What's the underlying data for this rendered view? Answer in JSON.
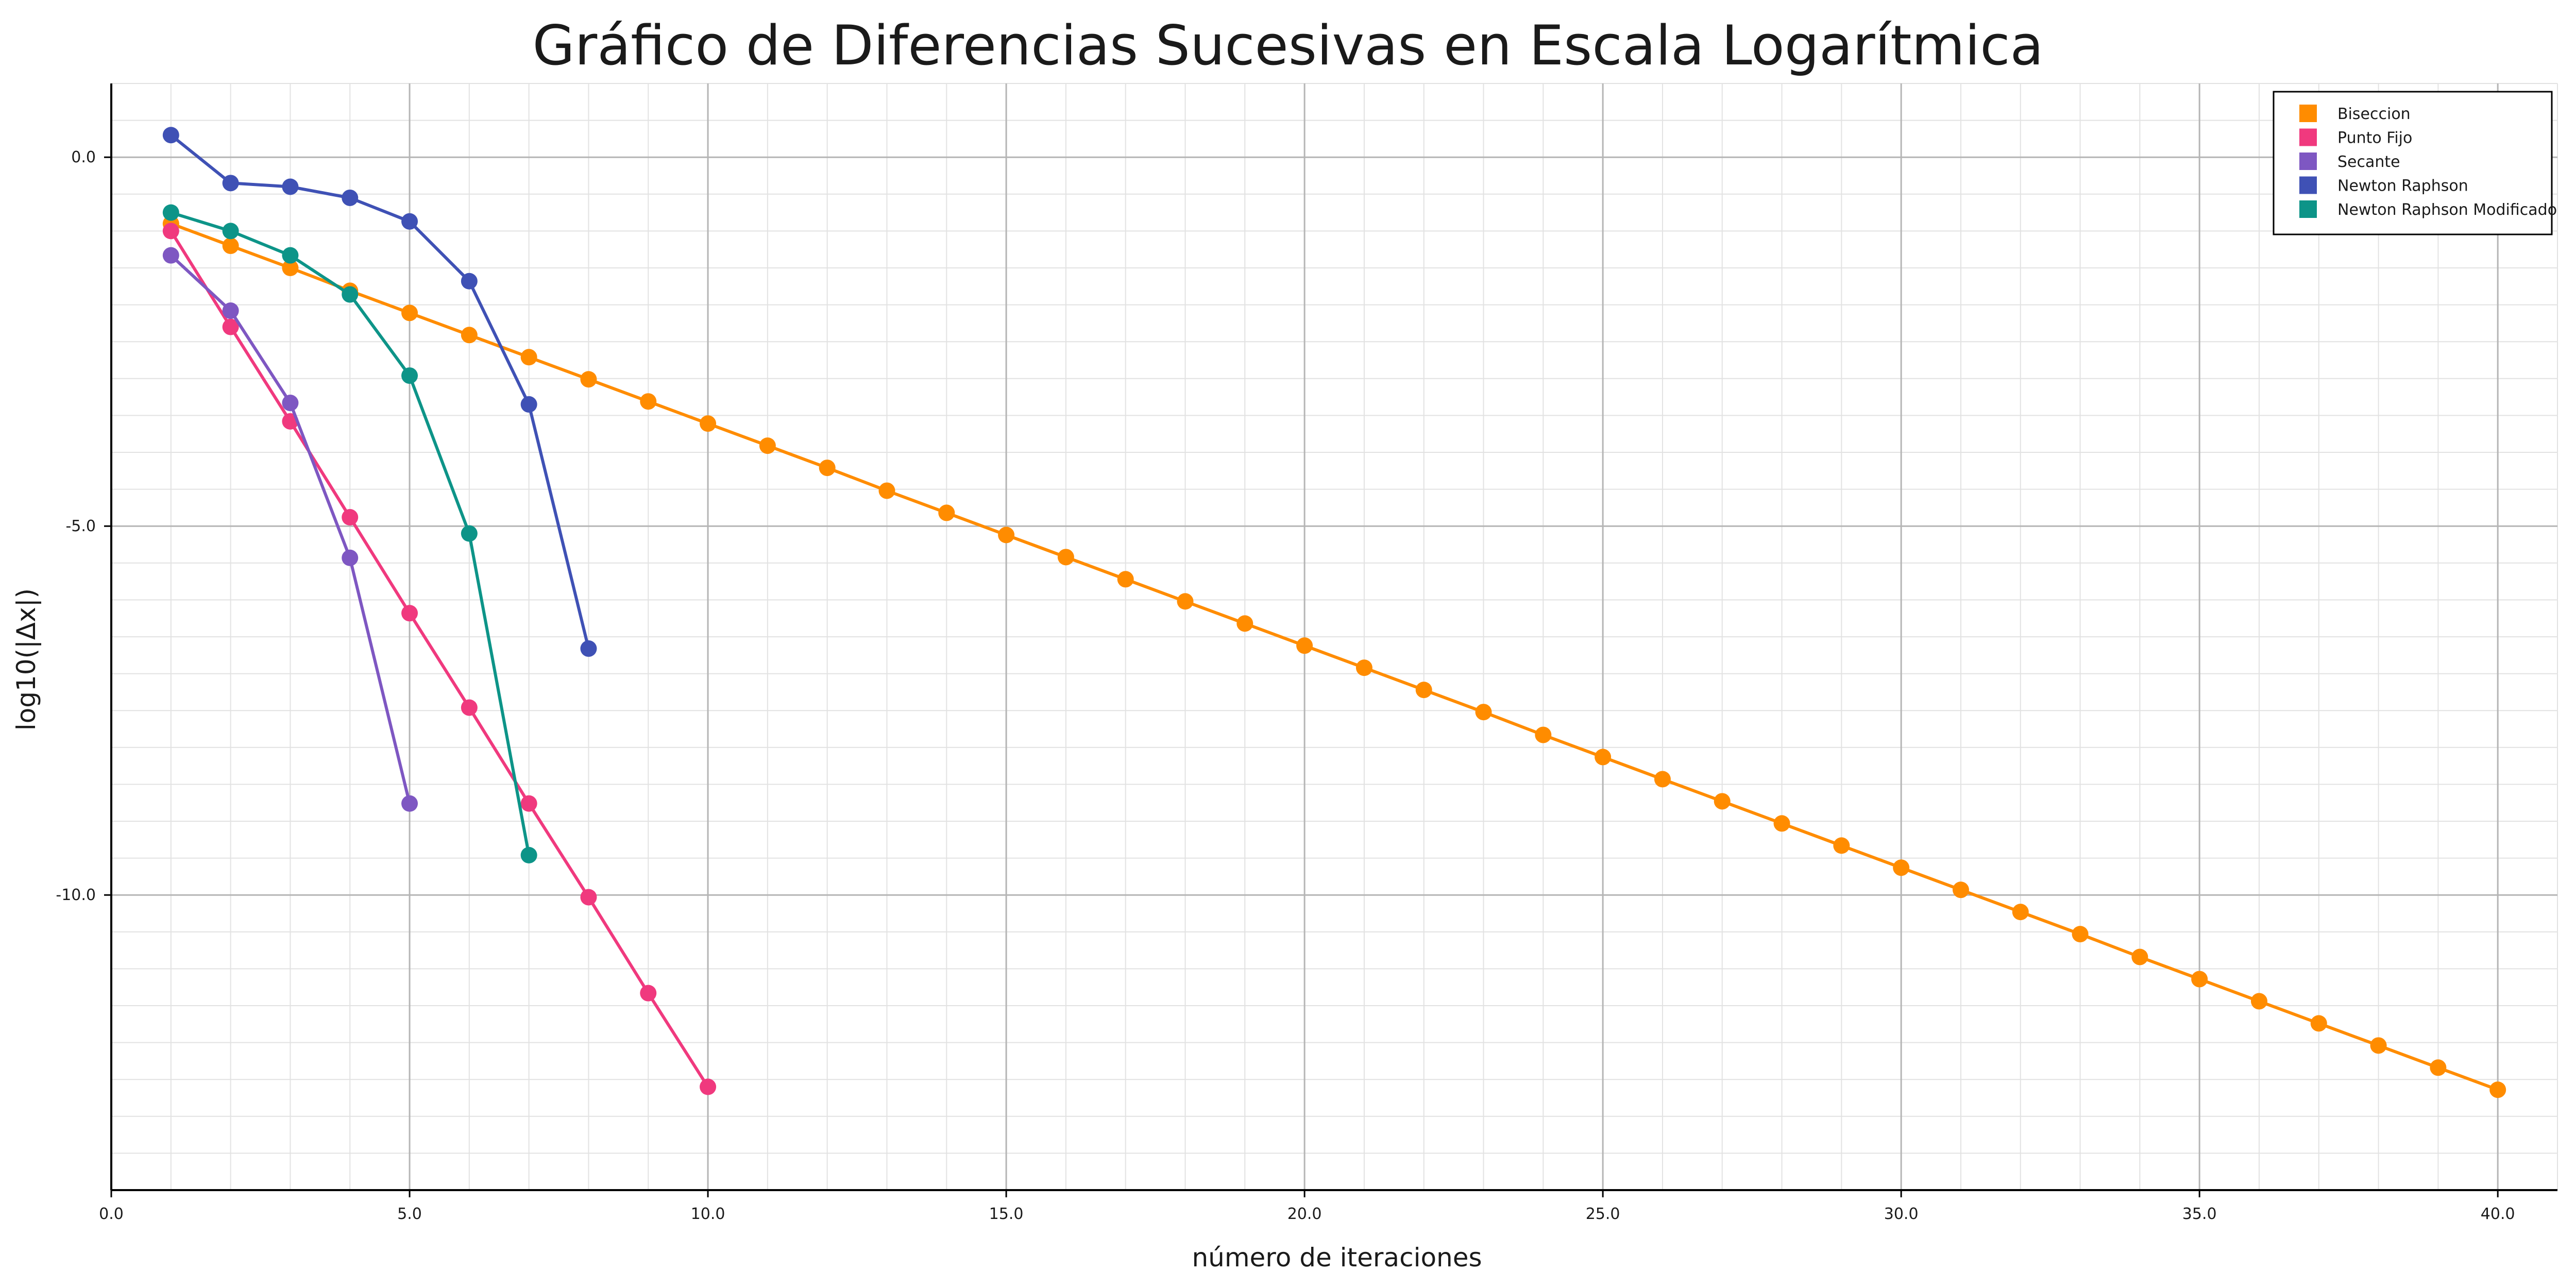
{
  "chart_data": {
    "type": "line",
    "title": "Gráfico de Diferencias Sucesivas en Escala Logarítmica",
    "xlabel": "número de iteraciones",
    "ylabel": "log10(|Δx|)",
    "xlim": [
      0,
      41
    ],
    "ylim": [
      -14.0,
      1.0
    ],
    "xticks": [
      0,
      5,
      10,
      15,
      20,
      25,
      30,
      35,
      40
    ],
    "xtick_labels": [
      "0.0",
      "5.0",
      "10.0",
      "15.0",
      "20.0",
      "25.0",
      "30.0",
      "35.0",
      "40.0"
    ],
    "yticks": [
      0,
      -5,
      -10
    ],
    "ytick_labels": [
      "0.0",
      "-5.0",
      "-10.0"
    ],
    "grid": true,
    "legend_position": "top-right",
    "series": [
      {
        "name": "Biseccion",
        "color": "#ff8c00",
        "x": [
          1,
          2,
          3,
          4,
          5,
          6,
          7,
          8,
          9,
          10,
          11,
          12,
          13,
          14,
          15,
          16,
          17,
          18,
          19,
          20,
          21,
          22,
          23,
          24,
          25,
          26,
          27,
          28,
          29,
          30,
          31,
          32,
          33,
          34,
          35,
          36,
          37,
          38,
          39,
          40
        ],
        "y": [
          -0.9,
          -1.2,
          -1.5,
          -1.81,
          -2.11,
          -2.41,
          -2.71,
          -3.01,
          -3.31,
          -3.61,
          -3.91,
          -4.21,
          -4.52,
          -4.82,
          -5.12,
          -5.42,
          -5.72,
          -6.02,
          -6.32,
          -6.62,
          -6.92,
          -7.22,
          -7.52,
          -7.83,
          -8.13,
          -8.43,
          -8.73,
          -9.03,
          -9.33,
          -9.63,
          -9.93,
          -10.23,
          -10.53,
          -10.84,
          -11.14,
          -11.44,
          -11.74,
          -12.04,
          -12.34,
          -12.64
        ]
      },
      {
        "name": "Punto Fijo",
        "color": "#f0397e",
        "x": [
          1,
          2,
          3,
          4,
          5,
          6,
          7,
          8,
          9,
          10
        ],
        "y": [
          -1.0,
          -2.3,
          -3.58,
          -4.88,
          -6.18,
          -7.46,
          -8.76,
          -10.03,
          -11.33,
          -12.6
        ]
      },
      {
        "name": "Secante",
        "color": "#7e57c2",
        "x": [
          1,
          2,
          3,
          4,
          5
        ],
        "y": [
          -1.33,
          -2.08,
          -3.33,
          -5.43,
          -8.76
        ]
      },
      {
        "name": "Newton Raphson",
        "color": "#3f51b5",
        "x": [
          1,
          2,
          3,
          4,
          5,
          6,
          7,
          8
        ],
        "y": [
          0.3,
          -0.35,
          -0.4,
          -0.55,
          -0.87,
          -1.68,
          -3.35,
          -6.66
        ]
      },
      {
        "name": "Newton Raphson Modificado",
        "color": "#0d9488",
        "x": [
          1,
          2,
          3,
          4,
          5,
          6,
          7
        ],
        "y": [
          -0.75,
          -1.0,
          -1.33,
          -1.86,
          -2.96,
          -5.1,
          -9.46
        ]
      }
    ]
  }
}
